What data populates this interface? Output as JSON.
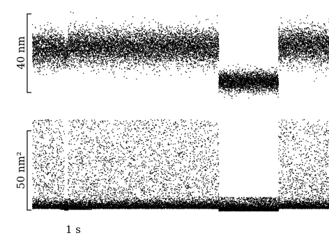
{
  "chart_data": [
    {
      "type": "scatter",
      "panel": "top",
      "title": "",
      "ylabel": "",
      "scale_bar_label": "40 nm",
      "scale_bar_value": 40,
      "scale_bar_unit": "nm",
      "x_unit": "s",
      "x_range": [
        0,
        10.2
      ],
      "y_range": [
        -45,
        35
      ],
      "segments": [
        {
          "x": [
            0.0,
            1.1
          ],
          "mean": 0,
          "spread": 14,
          "label": ""
        },
        {
          "x": [
            1.1,
            1.22
          ],
          "mean": -4,
          "spread": 10,
          "label": ""
        },
        {
          "x": [
            1.22,
            6.4
          ],
          "mean": 2,
          "spread": 14,
          "label": ""
        },
        {
          "x": [
            6.4,
            8.45
          ],
          "mean": -28,
          "spread": 8,
          "label": ""
        },
        {
          "x": [
            8.45,
            10.2
          ],
          "mean": 3,
          "spread": 14,
          "label": ""
        }
      ]
    },
    {
      "type": "scatter",
      "panel": "bottom",
      "title": "",
      "ylabel": "",
      "scale_bar_label": "50 nm²",
      "scale_bar_value": 50,
      "scale_bar_unit": "nm²",
      "x_unit": "s",
      "x_range": [
        0,
        10.2
      ],
      "y_range": [
        0,
        130
      ],
      "segments": [
        {
          "x": [
            0.0,
            1.1
          ],
          "baseline": 5,
          "burst_max": 115,
          "label": ""
        },
        {
          "x": [
            1.1,
            1.22
          ],
          "baseline": 3,
          "burst_max": 15,
          "label": ""
        },
        {
          "x": [
            1.22,
            6.4
          ],
          "baseline": 5,
          "burst_max": 115,
          "label": ""
        },
        {
          "x": [
            6.4,
            8.45
          ],
          "baseline": 2,
          "burst_max": 18,
          "label": ""
        },
        {
          "x": [
            8.45,
            10.2
          ],
          "baseline": 5,
          "burst_max": 115,
          "label": ""
        }
      ]
    }
  ],
  "time_scale_bar": {
    "label": "1 s",
    "value": 1,
    "unit": "s"
  },
  "top_scale_label": "40 nm",
  "bottom_scale_label": "50 nm²"
}
